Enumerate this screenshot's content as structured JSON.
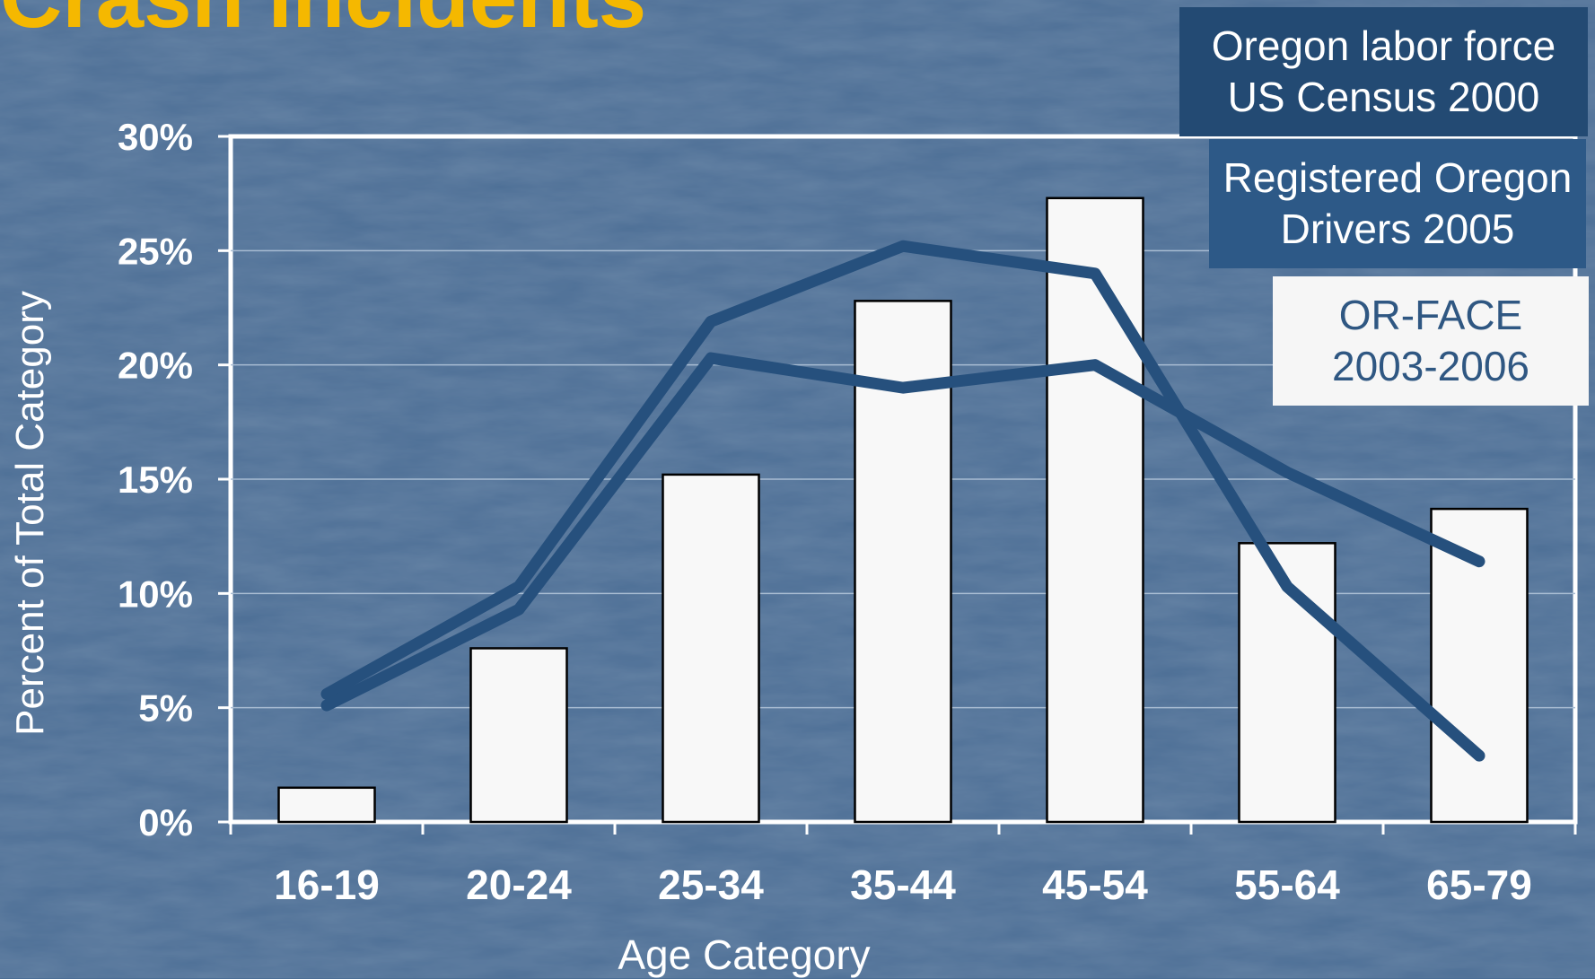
{
  "slide": {
    "title": "Crash Incidents"
  },
  "chart_data": {
    "type": "bar",
    "categories": [
      "16-19",
      "20-24",
      "25-34",
      "35-44",
      "45-54",
      "55-64",
      "65-79"
    ],
    "series": [
      {
        "name": "OR-FACE 2003-2006",
        "type": "bar",
        "values": [
          1.5,
          7.6,
          15.2,
          22.8,
          27.3,
          12.2,
          13.7
        ]
      },
      {
        "name": "Oregon labor force US Census 2000",
        "type": "line",
        "values": [
          5.6,
          10.3,
          21.9,
          25.2,
          24.0,
          10.3,
          2.9
        ]
      },
      {
        "name": "Registered Oregon Drivers 2005",
        "type": "line",
        "values": [
          5.1,
          9.3,
          20.3,
          19.0,
          20.0,
          15.3,
          11.4
        ]
      }
    ],
    "xlabel": "Age Category",
    "ylabel": "Percent of Total Category",
    "ylim": [
      0,
      30
    ],
    "yticks": [
      "0%",
      "5%",
      "10%",
      "15%",
      "20%",
      "25%",
      "30%"
    ],
    "grid": true,
    "legend_position": "top-right",
    "colors": {
      "bar_fill": "#f8f8f8",
      "bar_stroke": "#000000",
      "line": "#26507d",
      "tick_label": "#ffffff",
      "background": "#4d6f96",
      "title": "#f5b800"
    }
  },
  "legend": {
    "census": [
      "Oregon labor force",
      "US Census 2000"
    ],
    "drivers": [
      "Registered Oregon",
      "Drivers 2005"
    ],
    "orface": [
      "OR-FACE",
      "2003-2006"
    ]
  }
}
